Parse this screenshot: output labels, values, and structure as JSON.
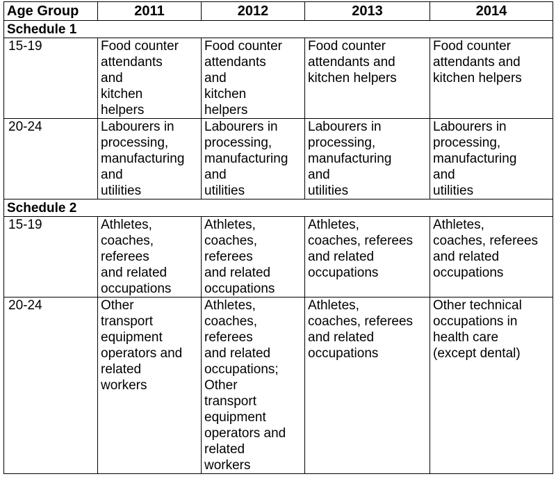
{
  "header": {
    "age_group": "Age Group",
    "years": [
      "2011",
      "2012",
      "2013",
      "2014"
    ]
  },
  "sections": [
    {
      "title": "Schedule 1",
      "rows": [
        {
          "age": "15-19",
          "cells": [
            "Food counter\nattendants\nand\nkitchen\nhelpers",
            "Food counter\nattendants\nand\nkitchen\nhelpers",
            "Food counter\nattendants and\nkitchen helpers",
            "Food counter\nattendants and\nkitchen helpers"
          ]
        },
        {
          "age": "20-24",
          "cells": [
            "Labourers in\nprocessing,\nmanufacturing\nand\nutilities",
            "Labourers in\nprocessing,\nmanufacturing\nand\nutilities",
            "Labourers in\nprocessing,\nmanufacturing\nand\nutilities",
            "Labourers in\nprocessing,\nmanufacturing\nand\nutilities"
          ]
        }
      ]
    },
    {
      "title": "Schedule 2",
      "rows": [
        {
          "age": "15-19",
          "cells": [
            "Athletes,\ncoaches,\nreferees\nand related\noccupations",
            "Athletes,\ncoaches,\nreferees\nand related\noccupations",
            "Athletes,\ncoaches, referees\nand related\noccupations",
            "Athletes,\ncoaches, referees\nand related\noccupations"
          ]
        },
        {
          "age": "20-24",
          "cells": [
            "Other\ntransport\nequipment\noperators and\nrelated\nworkers",
            "Athletes,\ncoaches,\nreferees\nand related\noccupations;\nOther\ntransport\nequipment\noperators and\nrelated\nworkers",
            "Athletes,\ncoaches, referees\nand related\noccupations",
            "Other technical\noccupations in\nhealth care\n(except dental)"
          ]
        }
      ]
    }
  ]
}
